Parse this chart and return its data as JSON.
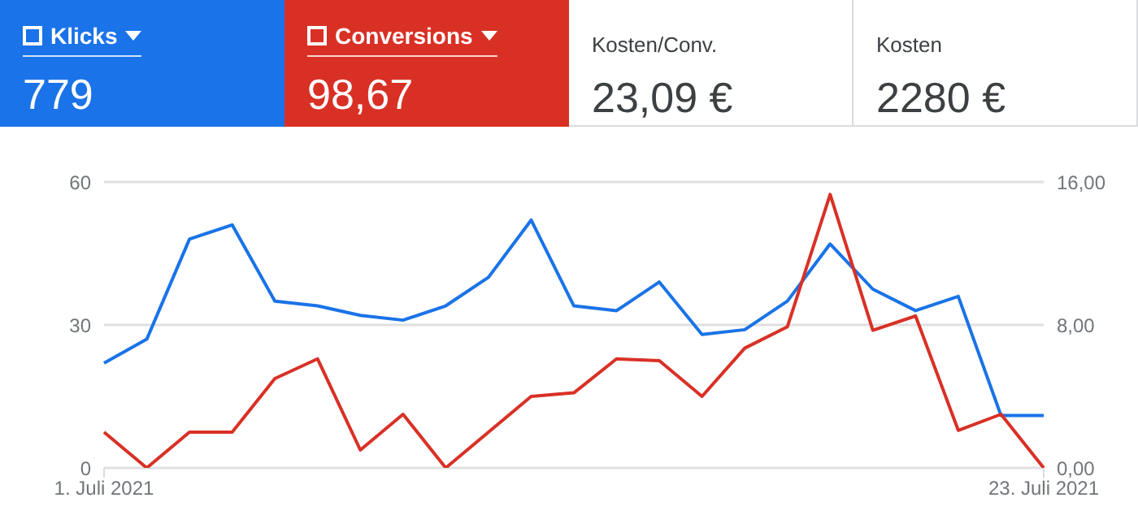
{
  "chart_data": {
    "type": "line",
    "categories": [
      "1. Juli 2021",
      null,
      null,
      null,
      null,
      null,
      null,
      null,
      null,
      null,
      null,
      null,
      null,
      null,
      null,
      null,
      null,
      null,
      null,
      null,
      null,
      null,
      "23. Juli 2021"
    ],
    "series": [
      {
        "name": "Klicks",
        "color": "#1a73e8",
        "values": [
          22,
          27,
          48,
          51,
          35,
          34,
          32,
          31,
          34,
          40,
          52,
          34,
          33,
          39,
          28,
          29,
          35,
          47,
          37.5,
          33,
          36,
          11,
          11
        ]
      },
      {
        "name": "Conversions",
        "color": "#d93025",
        "axis": "y2",
        "values": [
          2.0,
          0,
          2.0,
          2.0,
          5.0,
          6.1,
          1.0,
          3.0,
          0,
          2.0,
          4.0,
          4.2,
          6.1,
          6.0,
          4.0,
          6.7,
          7.9,
          15.3,
          7.7,
          8.5,
          2.1,
          3.0,
          0
        ]
      }
    ],
    "ylim": [
      0,
      60
    ],
    "yticks": [
      0,
      30,
      60
    ],
    "y2lim": [
      0,
      16
    ],
    "y2ticks": [
      {
        "value": 0,
        "label": "0,00"
      },
      {
        "value": 8,
        "label": "8,00"
      },
      {
        "value": 16,
        "label": "16,00"
      }
    ],
    "annotations": [
      "779",
      "98,67",
      "Kosten/Conv.",
      "23,09 €",
      "Kosten",
      "2280 €"
    ],
    "grid": "y",
    "legend": "top",
    "marker": "none",
    "line_style": "solid"
  }
}
